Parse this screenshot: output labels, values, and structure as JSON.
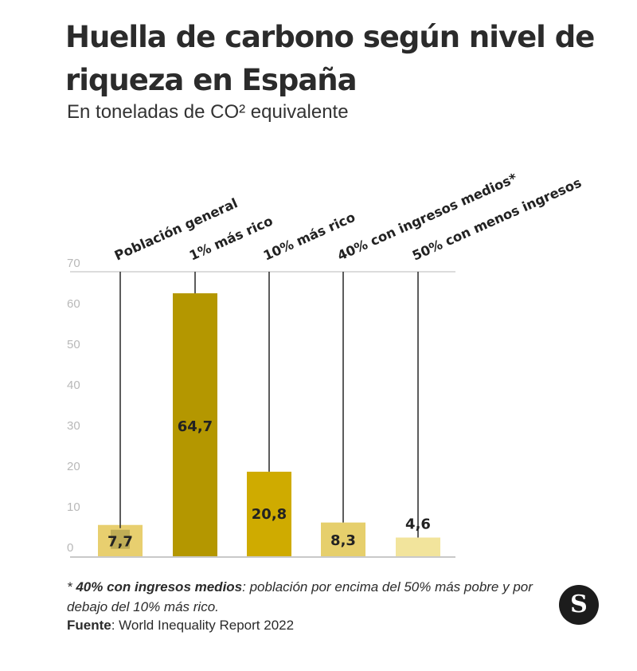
{
  "header": {
    "title": "Huella de carbono según nivel de riqueza en España",
    "subtitle": "En toneladas de CO² equivalente"
  },
  "chart_data": {
    "type": "bar",
    "categories": [
      "Población general",
      "1% más rico",
      "10% más rico",
      "40% con ingresos medios*",
      "50% con menos ingresos"
    ],
    "values": [
      7.7,
      64.7,
      20.8,
      8.3,
      4.6
    ],
    "value_labels": [
      "7,7",
      "64,7",
      "20,8",
      "8,3",
      "4,6"
    ],
    "colors": [
      "#e8cf6f",
      "#b49700",
      "#cfab00",
      "#e6cf6c",
      "#f2e49c"
    ],
    "title": "",
    "xlabel": "",
    "ylabel": "",
    "ylim": [
      0,
      70
    ],
    "yticks": [
      0,
      10,
      20,
      30,
      40,
      50,
      60,
      70
    ],
    "grid": false
  },
  "footnote": {
    "marker": "* ",
    "term": "40% con ingresos medios",
    "text": ": población por encima del 50% más pobre y por debajo del 10% más rico."
  },
  "source": {
    "label": "Fuente",
    "text": ": World Inequality Report 2022"
  },
  "logo": {
    "letter": "S"
  }
}
